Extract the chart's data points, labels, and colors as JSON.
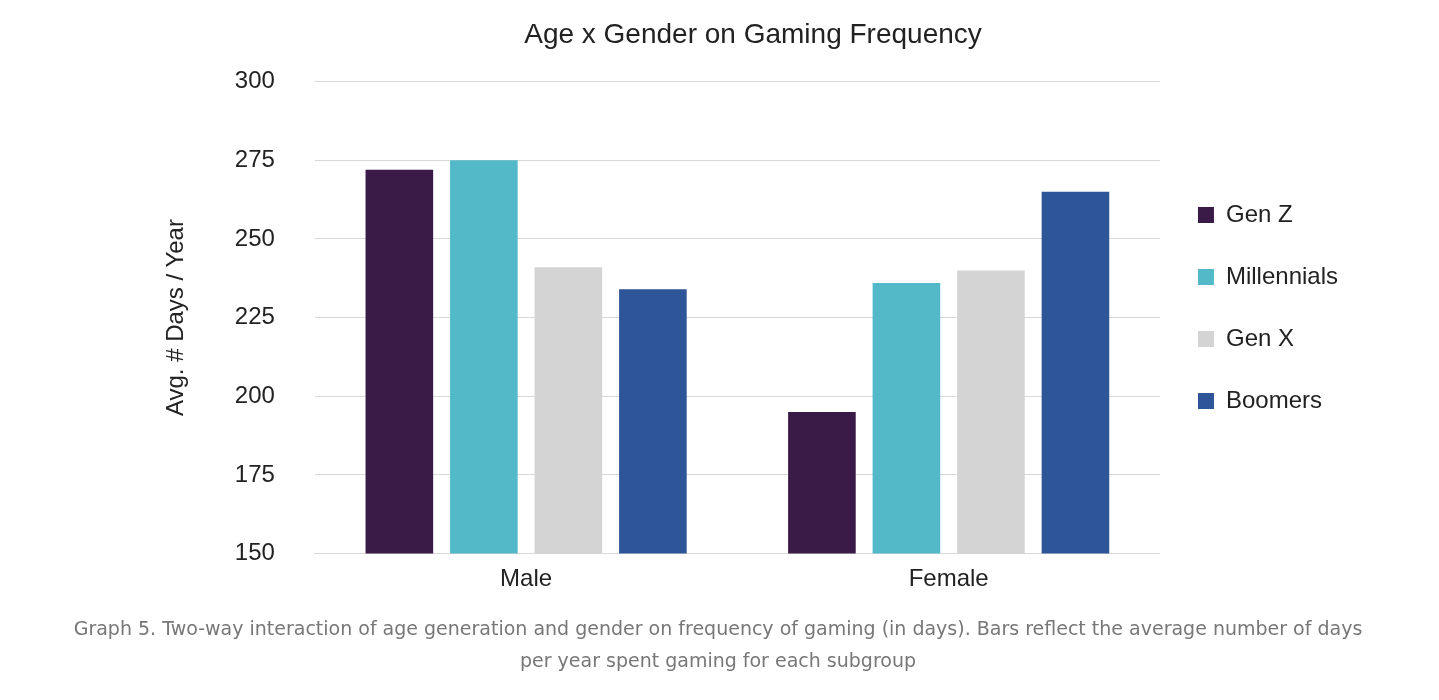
{
  "chart_data": {
    "type": "bar",
    "title": "Age x Gender on Gaming Frequency",
    "ylabel": "Avg. # Days / Year",
    "categories": [
      "Male",
      "Female"
    ],
    "series": [
      {
        "name": "Gen Z",
        "color": "#3a1a47",
        "values": [
          272,
          195
        ]
      },
      {
        "name": "Millennials",
        "color": "#53b8c8",
        "values": [
          275,
          236
        ]
      },
      {
        "name": "Gen X",
        "color": "#d4d4d4",
        "values": [
          241,
          240
        ]
      },
      {
        "name": "Boomers",
        "color": "#2e5597",
        "values": [
          234,
          265
        ]
      }
    ],
    "ylim": [
      150,
      300
    ],
    "yticks": [
      150,
      175,
      200,
      225,
      250,
      275,
      300
    ],
    "grid": "y",
    "legend": "right",
    "annotations": [
      "Graph 5. Two-way interaction of age generation and gender on frequency of gaming (in days). Bars reflect the average number of days per year spent gaming for each subgroup"
    ]
  }
}
